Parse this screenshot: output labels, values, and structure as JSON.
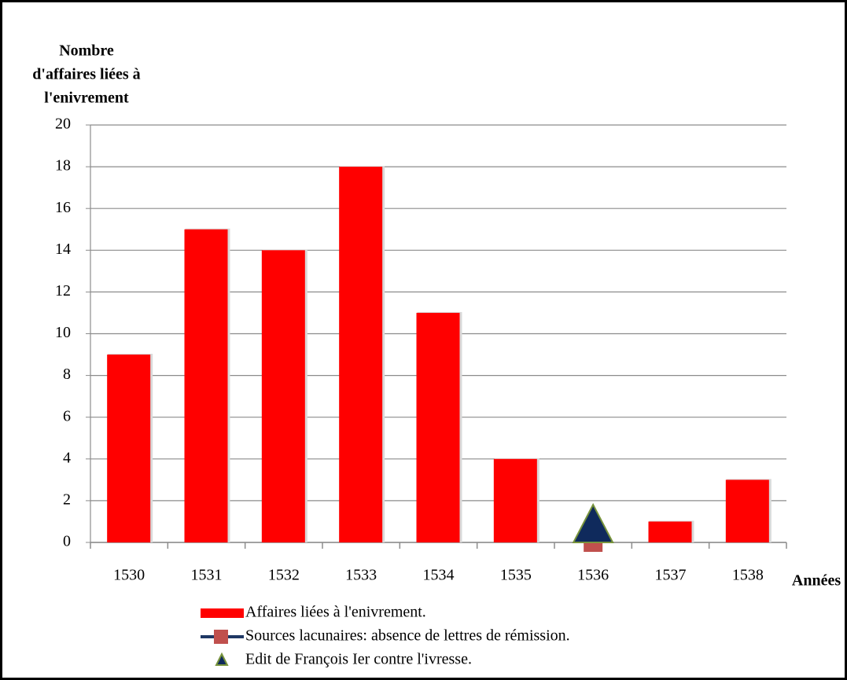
{
  "chart_data": {
    "type": "bar",
    "y_label": [
      "Nombre",
      "d'affaires liées à",
      "l'enivrement"
    ],
    "x_label": "Années",
    "categories": [
      "1530",
      "1531",
      "1532",
      "1533",
      "1534",
      "1535",
      "1536",
      "1537",
      "1538"
    ],
    "series": [
      {
        "name": "Affaires liées à l'enivrement.",
        "color": "#ff0000",
        "marker": "bar",
        "values": [
          9,
          15,
          14,
          18,
          11,
          4,
          null,
          1,
          3
        ]
      },
      {
        "name": "Sources lacunaires: absence de lettres de rémission.",
        "color": "#c0504d",
        "line_color": "#1f3864",
        "marker": "square",
        "values": [
          null,
          null,
          null,
          null,
          null,
          null,
          0,
          null,
          null
        ]
      },
      {
        "name": "Edit de François Ier contre l'ivresse.",
        "color": "#0f2a5c",
        "edge_color": "#77933c",
        "marker": "triangle",
        "values": [
          null,
          null,
          null,
          null,
          null,
          null,
          0,
          null,
          null
        ]
      }
    ],
    "ylim": [
      0,
      20
    ],
    "yticks": [
      0,
      2,
      4,
      6,
      8,
      10,
      12,
      14,
      16,
      18,
      20
    ],
    "grid": true
  }
}
